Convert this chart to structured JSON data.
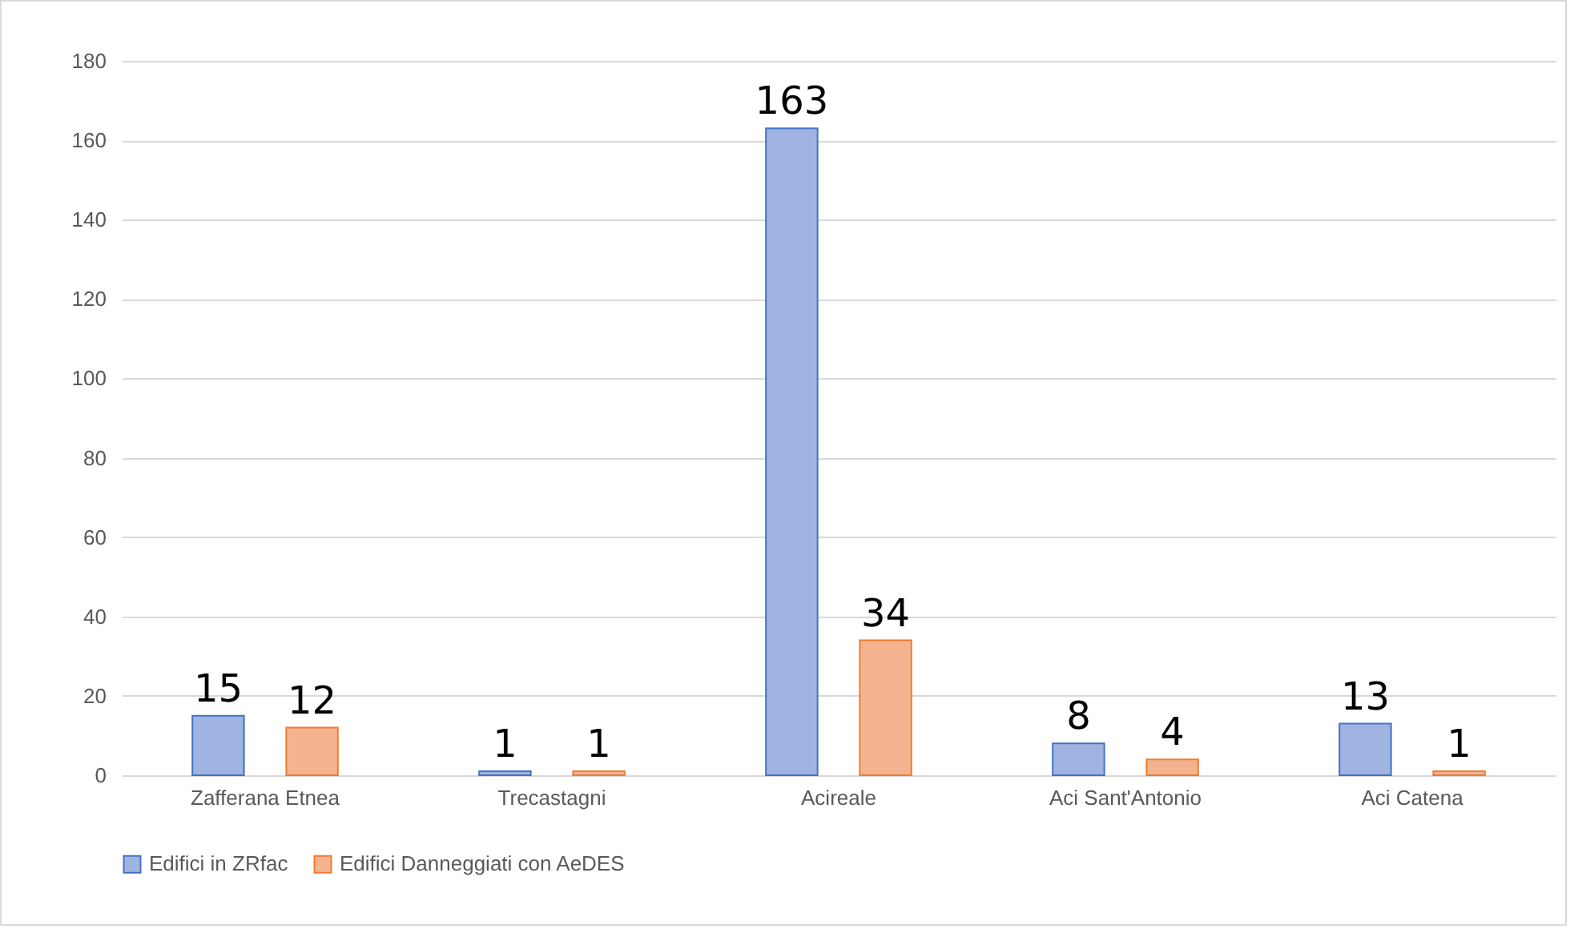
{
  "chart_data": {
    "type": "bar",
    "categories": [
      "Zafferana Etnea",
      "Trecastagni",
      "Acireale",
      "Aci Sant'Antonio",
      "Aci Catena"
    ],
    "series": [
      {
        "name": "Edifici in ZRfac",
        "color": "#9fb4e0",
        "values": [
          15,
          1,
          163,
          8,
          13
        ]
      },
      {
        "name": "Edifici Danneggiati con AeDES",
        "color": "#f5b28f",
        "values": [
          12,
          1,
          34,
          4,
          1
        ]
      }
    ],
    "ylim": [
      0,
      180
    ],
    "yticks": [
      0,
      20,
      40,
      60,
      80,
      100,
      120,
      140,
      160,
      180
    ],
    "grid": "y",
    "legend": "bottom",
    "data_labels": true
  }
}
